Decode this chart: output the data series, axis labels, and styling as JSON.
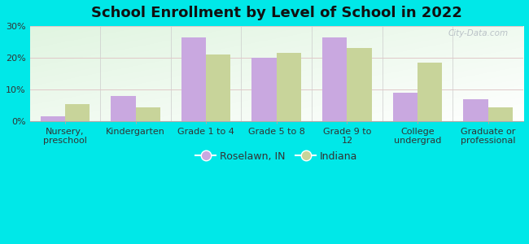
{
  "title": "School Enrollment by Level of School in 2022",
  "categories": [
    "Nursery,\npreschool",
    "Kindergarten",
    "Grade 1 to 4",
    "Grade 5 to 8",
    "Grade 9 to\n12",
    "College\nundergrad",
    "Graduate or\nprofessional"
  ],
  "roselawn": [
    1.5,
    8.0,
    26.5,
    20.0,
    26.5,
    9.0,
    7.0
  ],
  "indiana": [
    5.5,
    4.5,
    21.0,
    21.5,
    23.0,
    18.5,
    4.5
  ],
  "roselawn_color": "#c9a8e0",
  "indiana_color": "#c8d49a",
  "background_color": "#00e8e8",
  "ylim": [
    0,
    30
  ],
  "yticks": [
    0,
    10,
    20,
    30
  ],
  "ytick_labels": [
    "0%",
    "10%",
    "20%",
    "30%"
  ],
  "bar_width": 0.35,
  "legend_labels": [
    "Roselawn, IN",
    "Indiana"
  ],
  "watermark": "City-Data.com",
  "title_fontsize": 13,
  "tick_fontsize": 8,
  "legend_fontsize": 9,
  "grid_color": "#dddddd",
  "spine_color": "#aaaaaa"
}
